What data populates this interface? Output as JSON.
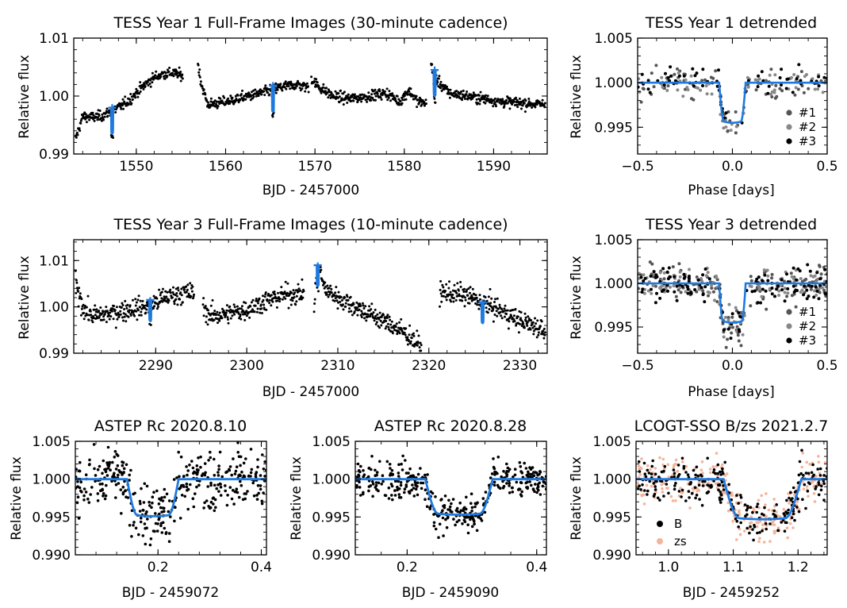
{
  "figure": {
    "colors": {
      "model": "#1f7ae0",
      "data": "#000000",
      "transit2": "#888888",
      "transit1": "#555555",
      "zs": "#f4b49a"
    }
  },
  "chart_data": [
    {
      "id": "p1",
      "type": "scatter",
      "title": "TESS Year 1 Full-Frame Images (30-minute cadence)",
      "xlabel": "BJD - 2457000",
      "ylabel": "Relative flux",
      "xlim": [
        1543,
        1596
      ],
      "ylim": [
        0.99,
        1.01
      ],
      "xticks": [
        "1550",
        "1560",
        "1570",
        "1580",
        "1590"
      ],
      "xtick_vals": [
        1550,
        1560,
        1570,
        1580,
        1590
      ],
      "yticks": [
        "0.99",
        "1.00",
        "1.01"
      ],
      "ytick_vals": [
        0.99,
        1.0,
        1.01
      ],
      "segments": [
        {
          "x": [
            1543.2,
            1544,
            1545,
            1546,
            1547,
            1548,
            1549,
            1550,
            1551,
            1552,
            1553,
            1554,
            1555.2
          ],
          "y": [
            0.9925,
            0.9965,
            0.9963,
            0.9965,
            0.9972,
            0.998,
            0.999,
            1.0005,
            1.002,
            1.0032,
            1.0038,
            1.004,
            1.0035
          ]
        },
        {
          "x": [
            1556.9,
            1557.3,
            1558,
            1560,
            1562,
            1564,
            1566,
            1568,
            1569.3
          ],
          "y": [
            1.0055,
            1.002,
            0.9985,
            0.999,
            0.9998,
            1.0005,
            1.0015,
            1.002,
            1.0015
          ]
        },
        {
          "x": [
            1569.6,
            1570.5,
            1572,
            1574,
            1576,
            1578,
            1579.5,
            1580.5,
            1581.5,
            1582.5
          ],
          "y": [
            1.003,
            1.0015,
            1.0,
            0.9995,
            1.0,
            1.0005,
            0.999,
            1.001,
            0.999,
            0.9988
          ]
        },
        {
          "x": [
            1583,
            1583.5,
            1585,
            1587,
            1589,
            1591,
            1593,
            1595.8
          ],
          "y": [
            1.0055,
            1.003,
            1.0005,
            1.0,
            0.9995,
            0.999,
            0.9988,
            0.9985
          ]
        }
      ],
      "scatter_sd": 0.00045,
      "model_transits": [
        {
          "t0": 1547.3,
          "base": 0.998,
          "depth": 0.0045
        },
        {
          "t0": 1565.3,
          "base": 1.0018,
          "depth": 0.0045
        },
        {
          "t0": 1583.4,
          "base": 1.0045,
          "depth": 0.0045
        }
      ]
    },
    {
      "id": "p2",
      "type": "scatter",
      "title": "TESS Year 1 detrended",
      "xlabel": "Phase [days]",
      "ylabel": "Relative flux",
      "xlim": [
        -0.5,
        0.5
      ],
      "ylim": [
        0.992,
        1.005
      ],
      "xticks": [
        "−0.5",
        "0.0",
        "0.5"
      ],
      "xtick_vals": [
        -0.5,
        0.0,
        0.5
      ],
      "yticks": [
        "0.995",
        "1.000",
        "1.005"
      ],
      "ytick_vals": [
        0.995,
        1.0,
        1.005
      ],
      "transit": {
        "center": 0.0,
        "half_width": 0.07,
        "ingress": 0.025,
        "depth": 0.0045
      },
      "scatter_sd": 0.0008,
      "legend": [
        "#1",
        "#2",
        "#3"
      ]
    },
    {
      "id": "p3",
      "type": "scatter",
      "title": "TESS Year 3 Full-Frame Images (10-minute cadence)",
      "xlabel": "BJD - 2457000",
      "ylabel": "Relative flux",
      "xlim": [
        2281,
        2333
      ],
      "ylim": [
        0.99,
        1.0145
      ],
      "xticks": [
        "2290",
        "2300",
        "2310",
        "2320",
        "2330"
      ],
      "xtick_vals": [
        2290,
        2300,
        2310,
        2320,
        2330
      ],
      "yticks": [
        "0.99",
        "1.00",
        "1.01"
      ],
      "ytick_vals": [
        0.99,
        1.0,
        1.01
      ],
      "segments": [
        {
          "x": [
            2281.2,
            2282,
            2283,
            2285,
            2287,
            2289,
            2291,
            2293,
            2294.2
          ],
          "y": [
            1.005,
            1.0,
            0.998,
            0.9985,
            0.9995,
            1.0,
            1.002,
            1.003,
            1.003
          ]
        },
        {
          "x": [
            2295.2,
            2296,
            2298,
            2300,
            2302,
            2304,
            2306.3
          ],
          "y": [
            1.0,
            0.998,
            0.9985,
            0.9995,
            1.0012,
            1.0025,
            1.003
          ]
        },
        {
          "x": [
            2307.4,
            2307.8,
            2308.5,
            2310,
            2312,
            2314,
            2316,
            2318,
            2319.2
          ],
          "y": [
            1.0,
            1.01,
            1.004,
            1.002,
            1.0,
            0.998,
            0.996,
            0.9935,
            0.991
          ]
        },
        {
          "x": [
            2321.2,
            2322,
            2324,
            2326,
            2328,
            2330,
            2332.8
          ],
          "y": [
            1.003,
            1.003,
            1.0025,
            1.001,
            0.999,
            0.997,
            0.995
          ]
        }
      ],
      "scatter_sd": 0.0011,
      "model_transits": [
        {
          "t0": 2289.4,
          "base": 1.0015,
          "depth": 0.0045
        },
        {
          "t0": 2307.8,
          "base": 1.009,
          "depth": 0.0045
        },
        {
          "t0": 2325.9,
          "base": 1.001,
          "depth": 0.0045
        }
      ]
    },
    {
      "id": "p4",
      "type": "scatter",
      "title": "TESS Year 3 detrended",
      "xlabel": "Phase [days]",
      "ylabel": "Relative flux",
      "xlim": [
        -0.5,
        0.5
      ],
      "ylim": [
        0.992,
        1.005
      ],
      "xticks": [
        "−0.5",
        "0.0",
        "0.5"
      ],
      "xtick_vals": [
        -0.5,
        0.0,
        0.5
      ],
      "yticks": [
        "0.995",
        "1.000",
        "1.005"
      ],
      "ytick_vals": [
        0.995,
        1.0,
        1.005
      ],
      "transit": {
        "center": 0.0,
        "half_width": 0.07,
        "ingress": 0.02,
        "depth": 0.0045
      },
      "scatter_sd": 0.0011,
      "legend": [
        "#1",
        "#2",
        "#3"
      ]
    },
    {
      "id": "p5",
      "type": "scatter",
      "title": "ASTEP Rc 2020.8.10",
      "xlabel": "BJD - 2459072",
      "ylabel": "Relative flux",
      "xlim": [
        0.04,
        0.41
      ],
      "ylim": [
        0.99,
        1.005
      ],
      "xticks": [
        "0.2",
        "0.4"
      ],
      "xtick_vals": [
        0.2,
        0.4
      ],
      "yticks": [
        "0.990",
        "0.995",
        "1.000",
        "1.005"
      ],
      "ytick_vals": [
        0.99,
        0.995,
        1.0,
        1.005
      ],
      "transit": {
        "t1": 0.14,
        "t4": 0.24,
        "ingress": 0.02,
        "depth": 0.0049
      },
      "scatter_sd": 0.0019
    },
    {
      "id": "p6",
      "type": "scatter",
      "title": "ASTEP Rc 2020.8.28",
      "xlabel": "BJD - 2459090",
      "ylabel": "Relative flux",
      "xlim": [
        0.12,
        0.415
      ],
      "ylim": [
        0.99,
        1.005
      ],
      "xticks": [
        "0.2",
        "0.4"
      ],
      "xtick_vals": [
        0.2,
        0.4
      ],
      "yticks": [
        "0.990",
        "0.995",
        "1.000",
        "1.005"
      ],
      "ytick_vals": [
        0.99,
        0.995,
        1.0,
        1.005
      ],
      "transit": {
        "t1": 0.228,
        "t4": 0.332,
        "ingress": 0.02,
        "depth": 0.0047
      },
      "scatter_sd": 0.0012
    },
    {
      "id": "p7",
      "type": "scatter",
      "title": "LCOGT-SSO B/zs 2021.2.7",
      "xlabel": "BJD - 2459252",
      "ylabel": "Relative flux",
      "xlim": [
        0.95,
        1.245
      ],
      "ylim": [
        0.99,
        1.005
      ],
      "xticks": [
        "1.0",
        "1.1",
        "1.2"
      ],
      "xtick_vals": [
        1.0,
        1.1,
        1.2
      ],
      "yticks": [
        "0.990",
        "0.995",
        "1.000",
        "1.005"
      ],
      "ytick_vals": [
        0.99,
        0.995,
        1.0,
        1.005
      ],
      "transit": {
        "t1": 1.085,
        "t4": 1.205,
        "ingress": 0.025,
        "depth": 0.0053
      },
      "scatter_sd": 0.0015,
      "legend": [
        "B",
        "zs"
      ]
    }
  ]
}
